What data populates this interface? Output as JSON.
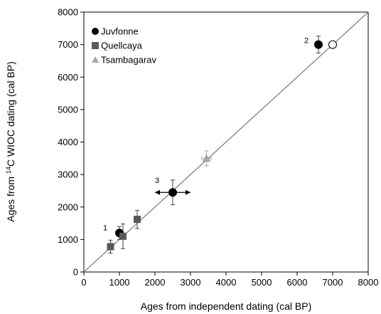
{
  "chart_data": {
    "type": "scatter",
    "xlabel": "Ages from independent dating (cal BP)",
    "ylabel_prefix": "Ages from ",
    "ylabel_sup": "14",
    "ylabel_suffix": "C WIOC dating (cal BP)",
    "xlim": [
      0,
      8000
    ],
    "ylim": [
      0,
      8000
    ],
    "x_ticks": [
      0,
      1000,
      2000,
      3000,
      4000,
      5000,
      6000,
      7000,
      8000
    ],
    "y_ticks": [
      0,
      1000,
      2000,
      3000,
      4000,
      5000,
      6000,
      7000,
      8000
    ],
    "grid": false,
    "legend_position": "top-left",
    "reference_line": {
      "from": [
        0,
        0
      ],
      "to": [
        8000,
        8000
      ],
      "color": "#808080"
    },
    "series": [
      {
        "name": "Juvfonne",
        "marker": "circle",
        "color": "#000000",
        "points": [
          {
            "x": 1000,
            "y": 1200,
            "yerr": 200,
            "xerr": 0,
            "label": "1",
            "filled": true
          },
          {
            "x": 2500,
            "y": 2450,
            "yerr": 380,
            "xerr": 500,
            "label": "3",
            "filled": true,
            "arrows": true
          },
          {
            "x": 6600,
            "y": 7000,
            "yerr": 260,
            "xerr": 0,
            "label": "2",
            "filled": true
          },
          {
            "x": 7000,
            "y": 7000,
            "yerr": 0,
            "xerr": 0,
            "label": "",
            "filled": false
          }
        ]
      },
      {
        "name": "Quellcaya",
        "marker": "square",
        "color": "#595959",
        "points": [
          {
            "x": 750,
            "y": 780,
            "yerr": 200,
            "xerr": 0
          },
          {
            "x": 1100,
            "y": 1100,
            "yerr": 380,
            "xerr": 0
          },
          {
            "x": 1500,
            "y": 1620,
            "yerr": 280,
            "xerr": 0
          }
        ]
      },
      {
        "name": "Tsambagarav",
        "marker": "triangle",
        "color": "#a6a6a6",
        "points": [
          {
            "x": 3450,
            "y": 3500,
            "yerr": 230,
            "xerr": 130
          }
        ]
      }
    ]
  }
}
